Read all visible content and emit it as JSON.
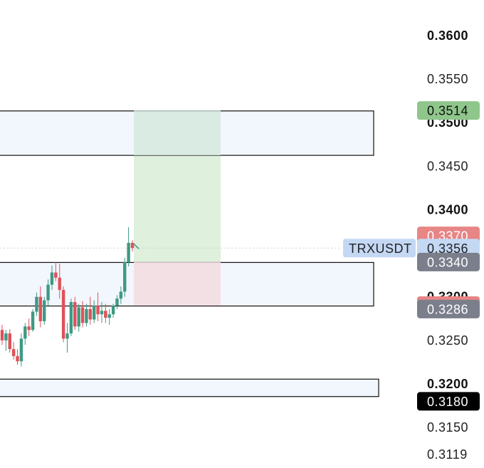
{
  "chart_data": {
    "type": "candlestick",
    "symbol": "TRXUSDT",
    "y_axis": {
      "range": [
        0.3105,
        0.3625
      ],
      "ticks": [
        {
          "value": 0.36,
          "label": "0.3600",
          "bold": true
        },
        {
          "value": 0.355,
          "label": "0.3550",
          "bold": false
        },
        {
          "value": 0.35,
          "label": "0.3500",
          "bold": true
        },
        {
          "value": 0.345,
          "label": "0.3450",
          "bold": false
        },
        {
          "value": 0.34,
          "label": "0.3400",
          "bold": true
        },
        {
          "value": 0.33,
          "label": "0.3300",
          "bold": true
        },
        {
          "value": 0.325,
          "label": "0.3250",
          "bold": false
        },
        {
          "value": 0.32,
          "label": "0.3200",
          "bold": true
        },
        {
          "value": 0.315,
          "label": "0.3150",
          "bold": false
        },
        {
          "value": 0.3119,
          "label": "0.3119",
          "bold": false
        }
      ]
    },
    "price_badges": [
      {
        "label": "0.3514",
        "value": 0.3514,
        "bg": "#8fc68b",
        "fg": "#111111"
      },
      {
        "label": "0.3370",
        "value": 0.337,
        "bg": "#e88585",
        "fg": "#ffffff"
      },
      {
        "label": "0.3356",
        "value": 0.3356,
        "bg": "#c4d8f4",
        "fg": "#222222",
        "symbol": "TRXUSDT"
      },
      {
        "label": "0.3340",
        "value": 0.334,
        "bg": "#7b7f8c",
        "fg": "#ffffff"
      },
      {
        "label": "0.3290",
        "value": 0.329,
        "bg": "#e88585",
        "fg": "#ffffff"
      },
      {
        "label": "0.3286",
        "value": 0.3286,
        "bg": "#7b7f8c",
        "fg": "#ffffff"
      },
      {
        "label": "0.3180",
        "value": 0.318,
        "bg": "#000000",
        "fg": "#ffffff"
      }
    ],
    "zones": [
      {
        "top": 0.35135,
        "bottom": 0.34625,
        "fill": "#eef3fc",
        "stroke": "#111111"
      },
      {
        "top": 0.33395,
        "bottom": 0.32895,
        "fill": "#eef3fc",
        "stroke": "#111111"
      },
      {
        "top": 0.32055,
        "bottom": 0.31855,
        "fill": "#eef3fc",
        "stroke": "#111111"
      }
    ],
    "position": {
      "entry": 0.334,
      "target": 0.3514,
      "stop": 0.329,
      "profit_fill": "#dff0dc",
      "loss_fill": "#f6dde0"
    },
    "last_price": 0.3356,
    "colors": {
      "up": "#3d9a82",
      "down": "#e0505a",
      "grid_dot": "#c8cfdc"
    },
    "candles": [
      {
        "o": 0.3262,
        "h": 0.3268,
        "l": 0.3245,
        "c": 0.325
      },
      {
        "o": 0.325,
        "h": 0.3262,
        "l": 0.3238,
        "c": 0.3258
      },
      {
        "o": 0.3258,
        "h": 0.3263,
        "l": 0.3236,
        "c": 0.324
      },
      {
        "o": 0.324,
        "h": 0.3248,
        "l": 0.3228,
        "c": 0.3232
      },
      {
        "o": 0.3232,
        "h": 0.324,
        "l": 0.3222,
        "c": 0.3226
      },
      {
        "o": 0.3226,
        "h": 0.3258,
        "l": 0.322,
        "c": 0.3252
      },
      {
        "o": 0.3252,
        "h": 0.327,
        "l": 0.3245,
        "c": 0.3266
      },
      {
        "o": 0.3266,
        "h": 0.3275,
        "l": 0.3255,
        "c": 0.3262
      },
      {
        "o": 0.3262,
        "h": 0.3286,
        "l": 0.326,
        "c": 0.3283
      },
      {
        "o": 0.3283,
        "h": 0.3305,
        "l": 0.3278,
        "c": 0.33
      },
      {
        "o": 0.33,
        "h": 0.3312,
        "l": 0.3265,
        "c": 0.3272
      },
      {
        "o": 0.3272,
        "h": 0.33,
        "l": 0.3268,
        "c": 0.3296
      },
      {
        "o": 0.3296,
        "h": 0.332,
        "l": 0.329,
        "c": 0.3314
      },
      {
        "o": 0.3314,
        "h": 0.3336,
        "l": 0.3308,
        "c": 0.3328
      },
      {
        "o": 0.3328,
        "h": 0.334,
        "l": 0.3318,
        "c": 0.3322
      },
      {
        "o": 0.3322,
        "h": 0.3338,
        "l": 0.3298,
        "c": 0.3308
      },
      {
        "o": 0.3308,
        "h": 0.3312,
        "l": 0.3248,
        "c": 0.3252
      },
      {
        "o": 0.3252,
        "h": 0.327,
        "l": 0.3236,
        "c": 0.3258
      },
      {
        "o": 0.3258,
        "h": 0.3298,
        "l": 0.3255,
        "c": 0.3294
      },
      {
        "o": 0.3294,
        "h": 0.33,
        "l": 0.3262,
        "c": 0.3266
      },
      {
        "o": 0.3266,
        "h": 0.3292,
        "l": 0.326,
        "c": 0.3288
      },
      {
        "o": 0.3288,
        "h": 0.3295,
        "l": 0.3265,
        "c": 0.327
      },
      {
        "o": 0.327,
        "h": 0.3292,
        "l": 0.3266,
        "c": 0.3286
      },
      {
        "o": 0.3286,
        "h": 0.33,
        "l": 0.3268,
        "c": 0.3274
      },
      {
        "o": 0.3274,
        "h": 0.3296,
        "l": 0.327,
        "c": 0.329
      },
      {
        "o": 0.329,
        "h": 0.3305,
        "l": 0.3272,
        "c": 0.328
      },
      {
        "o": 0.328,
        "h": 0.3294,
        "l": 0.327,
        "c": 0.3284
      },
      {
        "o": 0.3284,
        "h": 0.3292,
        "l": 0.327,
        "c": 0.3276
      },
      {
        "o": 0.3276,
        "h": 0.3286,
        "l": 0.3268,
        "c": 0.328
      },
      {
        "o": 0.328,
        "h": 0.3292,
        "l": 0.3276,
        "c": 0.329
      },
      {
        "o": 0.329,
        "h": 0.3302,
        "l": 0.3286,
        "c": 0.3298
      },
      {
        "o": 0.3298,
        "h": 0.3312,
        "l": 0.3292,
        "c": 0.3306
      },
      {
        "o": 0.3306,
        "h": 0.3345,
        "l": 0.33,
        "c": 0.334
      },
      {
        "o": 0.334,
        "h": 0.338,
        "l": 0.3335,
        "c": 0.3362
      },
      {
        "o": 0.3362,
        "h": 0.3365,
        "l": 0.3352,
        "c": 0.3356
      }
    ]
  }
}
